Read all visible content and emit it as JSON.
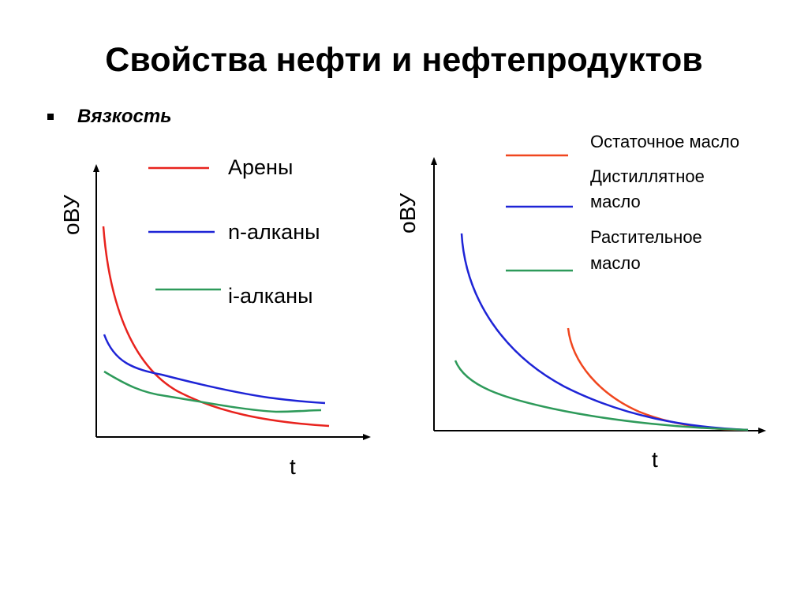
{
  "slide": {
    "title": "Свойства нефти и нефтепродуктов",
    "bullet": "Вязкость"
  },
  "left_diagram": {
    "y_axis_label": "oВУ",
    "x_axis_label": "t",
    "legend": [
      {
        "label": "Арены",
        "color": "#e8231e"
      },
      {
        "label": "n-алканы",
        "color": "#1e24d6"
      },
      {
        "label": "i-алканы",
        "color": "#2e9a5a"
      }
    ]
  },
  "right_diagram": {
    "y_axis_label": "oВУ",
    "x_axis_label": "t",
    "legend": [
      {
        "label_line1": "Остаточное масло",
        "label_line2": "",
        "color": "#f0461e"
      },
      {
        "label_line1": "Дистиллятное",
        "label_line2": "масло",
        "color": "#1e24d6"
      },
      {
        "label_line1": "Растительное",
        "label_line2": "масло",
        "color": "#2e9a5a"
      }
    ]
  }
}
